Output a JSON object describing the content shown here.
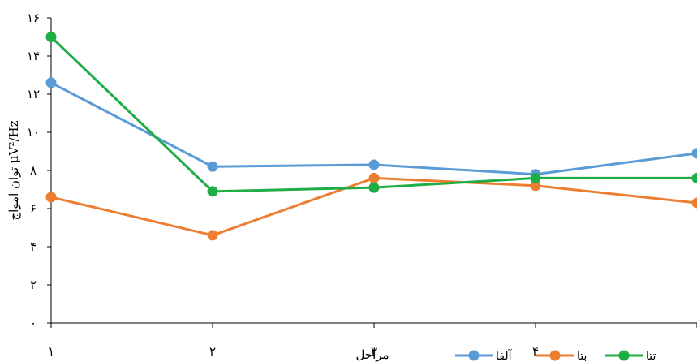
{
  "chart_data": {
    "type": "line",
    "x": [
      1,
      2,
      3,
      4,
      5
    ],
    "x_tick_labels": [
      "۱",
      "۲",
      "۳",
      "۴"
    ],
    "y_tick_labels": [
      "۰",
      "۲",
      "۴",
      "۶",
      "۸",
      "۱۰",
      "۱۲",
      "۱۴",
      "۱۶"
    ],
    "xlabel": "مراحل",
    "ylabel": "توان امواج μV²/Hz",
    "ylim": [
      0,
      16
    ],
    "xlim": [
      1,
      5
    ],
    "grid": false,
    "legend_position": "bottom-right",
    "series": [
      {
        "name": "آلفا",
        "color": "#5b9bd5",
        "values": [
          12.6,
          8.2,
          8.3,
          7.8,
          8.9
        ]
      },
      {
        "name": "بتا",
        "color": "#ed7d31",
        "values": [
          6.6,
          4.6,
          7.6,
          7.2,
          6.3
        ]
      },
      {
        "name": "تتا",
        "color": "#1fad45",
        "values": [
          15.0,
          6.9,
          7.1,
          7.6,
          7.6
        ]
      }
    ]
  }
}
